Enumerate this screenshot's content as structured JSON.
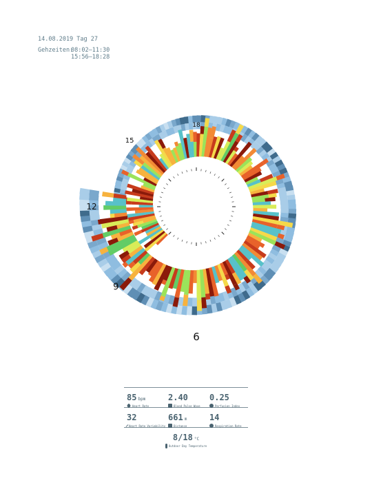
{
  "header": {
    "date_line": "14.08.2019 Tag 27",
    "times_label": "Gehzeiten:",
    "times_1": "08:02–11:30",
    "times_2": "15:56–18:28"
  },
  "chart_data": {
    "type": "radial-timeline",
    "title": "",
    "hour_labels": [
      {
        "hour": 12,
        "label": "12"
      },
      {
        "hour": 15,
        "label": "15"
      },
      {
        "hour": 18,
        "label": "18"
      },
      {
        "hour": 6,
        "label": "6"
      },
      {
        "hour": 9,
        "label": "9"
      }
    ],
    "walking_periods": [
      [
        "08:02",
        "11:30"
      ],
      [
        "15:56",
        "18:28"
      ]
    ],
    "bar_colors": [
      "#8b1a0a",
      "#c73b1c",
      "#e8622a",
      "#f28a35",
      "#f7b23e",
      "#f5d94a",
      "#d9ec58",
      "#9be35a",
      "#62cc66",
      "#58c1c9"
    ],
    "ring_colors": [
      "#a9cde8",
      "#8fbde0",
      "#7aa8cc",
      "#5f8fb5",
      "#3f6b8c",
      "#c8dff0"
    ]
  },
  "stats": {
    "heart_rate": {
      "value": "85",
      "unit": "bpm",
      "label": "Heart Rate"
    },
    "blood_pulse": {
      "value": "2.40",
      "unit": "",
      "label": "Blood Pulse Wave"
    },
    "perfusion": {
      "value": "0.25",
      "unit": "",
      "label": "Perfusion Index"
    },
    "hrv": {
      "value": "32",
      "unit": "",
      "label": "Heart Rate Variability"
    },
    "distance": {
      "value": "661",
      "unit": "m",
      "label": "Distance"
    },
    "respiration": {
      "value": "14",
      "unit": "",
      "label": "Respiration Rate"
    },
    "temperature": {
      "value": "8/18",
      "unit": "°C",
      "label": "Outdoor Day Temperature"
    }
  }
}
